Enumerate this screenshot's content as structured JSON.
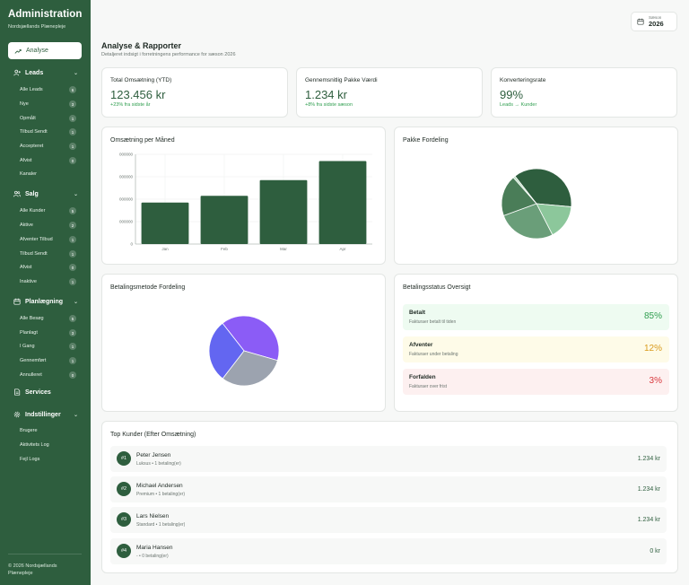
{
  "sidebar": {
    "title": "Administration",
    "subtitle": "Nordsjællands Plænepleje",
    "active_item": "Analyse",
    "sections": {
      "leads": {
        "label": "Leads",
        "items": [
          {
            "label": "Alle Leads",
            "badge": "6"
          },
          {
            "label": "Nye",
            "badge": "3"
          },
          {
            "label": "Opmålt",
            "badge": "1"
          },
          {
            "label": "Tilbud Sendt",
            "badge": "1"
          },
          {
            "label": "Accepteret",
            "badge": "1"
          },
          {
            "label": "Afvist",
            "badge": "0"
          },
          {
            "label": "Kanaler",
            "badge": ""
          }
        ]
      },
      "salg": {
        "label": "Salg",
        "items": [
          {
            "label": "Alle Kunder",
            "badge": "5"
          },
          {
            "label": "Aktive",
            "badge": "2"
          },
          {
            "label": "Afventer Tilbud",
            "badge": "1"
          },
          {
            "label": "Tilbud Sendt",
            "badge": "1"
          },
          {
            "label": "Afvist",
            "badge": "0"
          },
          {
            "label": "Inaktive",
            "badge": "1"
          }
        ]
      },
      "planlaegning": {
        "label": "Planlægning",
        "items": [
          {
            "label": "Alle Besøg",
            "badge": "5"
          },
          {
            "label": "Planlagt",
            "badge": "3"
          },
          {
            "label": "I Gang",
            "badge": "1"
          },
          {
            "label": "Gennemført",
            "badge": "1"
          },
          {
            "label": "Annulleret",
            "badge": "0"
          }
        ]
      },
      "services": {
        "label": "Services"
      },
      "indstillinger": {
        "label": "Indstillinger",
        "items": [
          {
            "label": "Brugere"
          },
          {
            "label": "Aktivitets Log"
          },
          {
            "label": "Fejl Logs"
          }
        ]
      }
    },
    "footer": "© 2026 Nordsjællands Plænepleje"
  },
  "season": {
    "label": "Sæson",
    "value": "2026"
  },
  "page": {
    "title": "Analyse & Rapporter",
    "subtitle": "Detaljeret indsigt i forretningens performance for sæson 2026"
  },
  "stats": [
    {
      "title": "Total Omsætning (YTD)",
      "value": "123.456 kr",
      "sub": "+23% fra sidste år"
    },
    {
      "title": "Gennemsnitlig Pakke Værdi",
      "value": "1.234 kr",
      "sub": "+8% fra sidste sæson"
    },
    {
      "title": "Konverteringsrate",
      "value": "99%",
      "sub": "Leads → Kunder"
    }
  ],
  "colors": {
    "primary": "#2e5e3e",
    "accent_green": "#2f9e4f",
    "paid_bg": "#eefbf1",
    "paid_text": "#2f9e4f",
    "pending_bg": "#fefbe8",
    "pending_text": "#d99a1b",
    "overdue_bg": "#fdf0f0",
    "overdue_text": "#d9393e"
  },
  "revenue_chart": {
    "title": "Omsætning per Måned",
    "chart_data": {
      "type": "bar",
      "categories": [
        "Jan",
        "Feb",
        "Mar",
        "Apr"
      ],
      "values": [
        185000,
        215000,
        285000,
        370000
      ],
      "ylim": [
        0,
        400000
      ],
      "yticks": [
        0,
        100000,
        200000,
        300000,
        400000
      ],
      "ytick_labels": [
        "0",
        "000000",
        "000000",
        "000000",
        "000000"
      ],
      "color": "#2e5e3e",
      "grid": true
    }
  },
  "package_chart": {
    "title": "Pakke Fordeling",
    "chart_data": {
      "type": "pie",
      "values": [
        37,
        16,
        27,
        19,
        1
      ],
      "colors": [
        "#2e5e3e",
        "#8cc79b",
        "#6a9e79",
        "#4a7d58",
        "#b8dcc0"
      ]
    }
  },
  "payment_method_chart": {
    "title": "Betalingsmetode Fordeling",
    "chart_data": {
      "type": "pie",
      "values": [
        40,
        31,
        29
      ],
      "colors": [
        "#8b5cf6",
        "#9ca3af",
        "#6366f1"
      ]
    }
  },
  "payment_status": {
    "title": "Betalingsstatus Oversigt",
    "rows": [
      {
        "label": "Betalt",
        "desc": "Fakturaer betalt til tiden",
        "pct": "85%"
      },
      {
        "label": "Afventer",
        "desc": "Fakturaer under betaling",
        "pct": "12%"
      },
      {
        "label": "Forfalden",
        "desc": "Fakturaer over frist",
        "pct": "3%"
      }
    ]
  },
  "top_customers": {
    "title": "Top Kunder (Efter Omsætning)",
    "rows": [
      {
        "rank": "#1",
        "name": "Peter Jensen",
        "meta": "Luksus • 1 betaling(er)",
        "amount": "1.234 kr"
      },
      {
        "rank": "#2",
        "name": "Michael Andersen",
        "meta": "Premium • 1 betaling(er)",
        "amount": "1.234 kr"
      },
      {
        "rank": "#3",
        "name": "Lars Nielsen",
        "meta": "Standard • 1 betaling(er)",
        "amount": "1.234 kr"
      },
      {
        "rank": "#4",
        "name": "Maria Hansen",
        "meta": "- • 0 betaling(er)",
        "amount": "0 kr"
      }
    ]
  }
}
